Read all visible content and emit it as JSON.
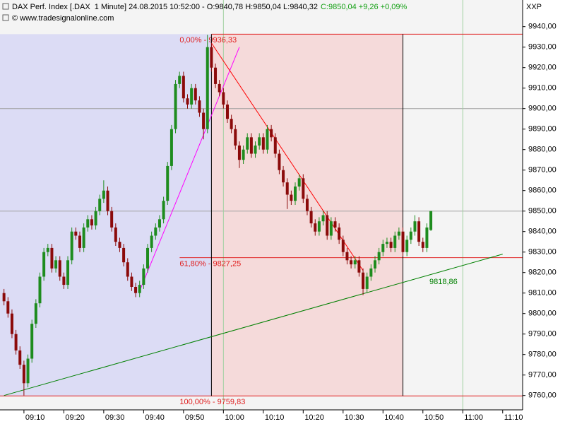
{
  "chart_data": {
    "type": "candlestick",
    "title": "DAX Perf. Index [.DAX  1 Minute] 24.08.2015 10:52:00 - O:9840,78 H:9850,04 L:9840,32",
    "quote": "C:9850,04 +9,26 +0,09%",
    "source": "© www.tradesignalonline.com",
    "corner_label": "XXP",
    "x": [
      "09:05",
      "09:06",
      "09:07",
      "09:08",
      "09:09",
      "09:10",
      "09:11",
      "09:12",
      "09:13",
      "09:14",
      "09:15",
      "09:16",
      "09:17",
      "09:18",
      "09:19",
      "09:20",
      "09:21",
      "09:22",
      "09:23",
      "09:24",
      "09:25",
      "09:26",
      "09:27",
      "09:28",
      "09:29",
      "09:30",
      "09:31",
      "09:32",
      "09:33",
      "09:34",
      "09:35",
      "09:36",
      "09:37",
      "09:38",
      "09:39",
      "09:40",
      "09:41",
      "09:42",
      "09:43",
      "09:44",
      "09:45",
      "09:46",
      "09:47",
      "09:48",
      "09:49",
      "09:50",
      "09:51",
      "09:52",
      "09:53",
      "09:54",
      "09:55",
      "09:56",
      "09:57",
      "09:58",
      "09:59",
      "10:00",
      "10:01",
      "10:02",
      "10:03",
      "10:04",
      "10:05",
      "10:06",
      "10:07",
      "10:08",
      "10:09",
      "10:10",
      "10:11",
      "10:12",
      "10:13",
      "10:14",
      "10:15",
      "10:16",
      "10:17",
      "10:18",
      "10:19",
      "10:20",
      "10:21",
      "10:22",
      "10:23",
      "10:24",
      "10:25",
      "10:26",
      "10:27",
      "10:28",
      "10:29",
      "10:30",
      "10:31",
      "10:32",
      "10:33",
      "10:34",
      "10:35",
      "10:36",
      "10:37",
      "10:38",
      "10:39",
      "10:40",
      "10:41",
      "10:42",
      "10:43",
      "10:44",
      "10:45",
      "10:46",
      "10:47",
      "10:48",
      "10:49",
      "10:50",
      "10:51",
      "10:52"
    ],
    "open": [
      9810,
      9806,
      9800,
      9790,
      9782,
      9775,
      9766,
      9778,
      9795,
      9805,
      9818,
      9830,
      9832,
      9822,
      9826,
      9818,
      9814,
      9826,
      9840,
      9838,
      9832,
      9842,
      9846,
      9843,
      9850,
      9856,
      9860,
      9850,
      9842,
      9835,
      9832,
      9825,
      9818,
      9813,
      9810,
      9814,
      9822,
      9832,
      9838,
      9842,
      9846,
      9855,
      9872,
      9890,
      9912,
      9916,
      9905,
      9902,
      9910,
      9904,
      9898,
      9890,
      9930,
      9920,
      9912,
      9908,
      9902,
      9895,
      9890,
      9882,
      9875,
      9880,
      9886,
      9878,
      9882,
      9886,
      9880,
      9890,
      9886,
      9878,
      9870,
      9864,
      9858,
      9855,
      9862,
      9866,
      9856,
      9850,
      9844,
      9840,
      9845,
      9848,
      9838,
      9845,
      9842,
      9836,
      9830,
      9826,
      9824,
      9826,
      9820,
      9812,
      9818,
      9822,
      9826,
      9830,
      9834,
      9835,
      9832,
      9838,
      9840,
      9830,
      9836,
      9840,
      9845,
      9835,
      9832,
      9840.78
    ],
    "high": [
      9812,
      9808,
      9802,
      9792,
      9784,
      9777,
      9780,
      9797,
      9807,
      9820,
      9832,
      9834,
      9834,
      9828,
      9828,
      9820,
      9828,
      9842,
      9842,
      9840,
      9844,
      9848,
      9848,
      9852,
      9858,
      9865,
      9862,
      9852,
      9844,
      9837,
      9834,
      9827,
      9820,
      9815,
      9816,
      9824,
      9834,
      9840,
      9844,
      9848,
      9857,
      9874,
      9892,
      9914,
      9918,
      9918,
      9907,
      9912,
      9912,
      9906,
      9900,
      9936,
      9932,
      9922,
      9914,
      9910,
      9904,
      9897,
      9892,
      9884,
      9882,
      9888,
      9888,
      9884,
      9888,
      9888,
      9892,
      9892,
      9888,
      9880,
      9872,
      9866,
      9860,
      9864,
      9868,
      9868,
      9858,
      9852,
      9846,
      9847,
      9850,
      9850,
      9847,
      9847,
      9844,
      9838,
      9832,
      9828,
      9828,
      9828,
      9822,
      9820,
      9824,
      9828,
      9832,
      9836,
      9837,
      9837,
      9840,
      9842,
      9842,
      9838,
      9842,
      9848,
      9847,
      9837,
      9844,
      9850.04
    ],
    "low": [
      9804,
      9798,
      9788,
      9780,
      9773,
      9760,
      9764,
      9776,
      9793,
      9803,
      9816,
      9828,
      9820,
      9820,
      9816,
      9812,
      9812,
      9824,
      9836,
      9830,
      9830,
      9840,
      9841,
      9841,
      9848,
      9854,
      9848,
      9840,
      9833,
      9830,
      9823,
      9816,
      9811,
      9808,
      9808,
      9812,
      9820,
      9830,
      9836,
      9840,
      9844,
      9853,
      9870,
      9888,
      9910,
      9903,
      9900,
      9900,
      9902,
      9896,
      9885,
      9888,
      9918,
      9910,
      9906,
      9900,
      9893,
      9888,
      9880,
      9871,
      9873,
      9878,
      9876,
      9876,
      9880,
      9878,
      9878,
      9884,
      9876,
      9868,
      9862,
      9851,
      9853,
      9853,
      9860,
      9854,
      9848,
      9842,
      9838,
      9838,
      9843,
      9836,
      9836,
      9840,
      9834,
      9828,
      9824,
      9822,
      9822,
      9818,
      9809,
      9810,
      9816,
      9820,
      9824,
      9828,
      9832,
      9830,
      9830,
      9836,
      9828,
      9828,
      9834,
      9838,
      9833,
      9830,
      9830,
      9840.32
    ],
    "close": [
      9806,
      9800,
      9790,
      9782,
      9775,
      9766,
      9778,
      9795,
      9805,
      9818,
      9830,
      9832,
      9822,
      9826,
      9818,
      9814,
      9826,
      9840,
      9838,
      9832,
      9842,
      9846,
      9843,
      9850,
      9856,
      9860,
      9850,
      9842,
      9835,
      9832,
      9825,
      9818,
      9813,
      9810,
      9814,
      9822,
      9832,
      9838,
      9842,
      9846,
      9855,
      9872,
      9890,
      9912,
      9916,
      9905,
      9902,
      9910,
      9904,
      9898,
      9890,
      9930,
      9920,
      9912,
      9908,
      9902,
      9895,
      9890,
      9882,
      9875,
      9880,
      9886,
      9878,
      9882,
      9886,
      9880,
      9890,
      9886,
      9878,
      9870,
      9864,
      9858,
      9855,
      9862,
      9866,
      9856,
      9850,
      9844,
      9840,
      9845,
      9848,
      9838,
      9845,
      9842,
      9836,
      9830,
      9826,
      9824,
      9826,
      9820,
      9812,
      9818,
      9822,
      9826,
      9830,
      9834,
      9835,
      9832,
      9838,
      9840,
      9830,
      9836,
      9840,
      9845,
      9835,
      9832,
      9842,
      9850.04
    ],
    "up_color": "#1e8c1e",
    "down_color": "#8b0a0a",
    "xlim": [
      "09:04",
      "11:15"
    ],
    "xticks": [
      "09:10",
      "09:20",
      "09:30",
      "09:40",
      "09:50",
      "10:00",
      "10:10",
      "10:20",
      "10:30",
      "10:40",
      "10:50",
      "11:00",
      "11:10"
    ],
    "ylim": [
      9753,
      9953
    ],
    "yticks": [
      {
        "value": 9760,
        "label": "9760,00"
      },
      {
        "value": 9770,
        "label": "9770,00"
      },
      {
        "value": 9780,
        "label": "9780,00"
      },
      {
        "value": 9790,
        "label": "9790,00"
      },
      {
        "value": 9800,
        "label": "9800,00"
      },
      {
        "value": 9810,
        "label": "9810,00"
      },
      {
        "value": 9820,
        "label": "9820,00"
      },
      {
        "value": 9830,
        "label": "9830,00"
      },
      {
        "value": 9840,
        "label": "9840,00"
      },
      {
        "value": 9850,
        "label": "9850,00"
      },
      {
        "value": 9860,
        "label": "9860,00"
      },
      {
        "value": 9870,
        "label": "9870,00"
      },
      {
        "value": 9880,
        "label": "9880,00"
      },
      {
        "value": 9890,
        "label": "9890,00"
      },
      {
        "value": 9900,
        "label": "9900,00"
      },
      {
        "value": 9910,
        "label": "9910,00"
      },
      {
        "value": 9920,
        "label": "9920,00"
      },
      {
        "value": 9930,
        "label": "9930,00"
      },
      {
        "value": 9940,
        "label": "9940,00"
      }
    ],
    "grid_y": [
      9850,
      9900
    ],
    "grid_x": [
      "10:00",
      "11:00"
    ],
    "fib": {
      "start": "09:04",
      "split": "09:57",
      "end": "10:45",
      "colors": [
        "#dcdcf5",
        "#f5dada"
      ],
      "line_color": "#e02020",
      "levels": [
        {
          "value": 9936.33,
          "label": "0,00% - 9936,33"
        },
        {
          "value": 9827.25,
          "label": "61,80% - 9827,25"
        },
        {
          "value": 9759.83,
          "label": "100,00% - 9759,83"
        }
      ]
    },
    "trendlines": [
      {
        "color": "#ff00ff",
        "points": [
          [
            "09:39",
            9811
          ],
          [
            "10:04",
            9930
          ]
        ]
      },
      {
        "color": "#ff0000",
        "points": [
          [
            "09:57",
            9932
          ],
          [
            "10:35",
            9821
          ]
        ]
      },
      {
        "color": "#008000",
        "points": [
          [
            "09:05",
            9760
          ],
          [
            "11:10",
            9829
          ]
        ],
        "value": 9818.86,
        "value_label": "9818,86"
      }
    ]
  }
}
